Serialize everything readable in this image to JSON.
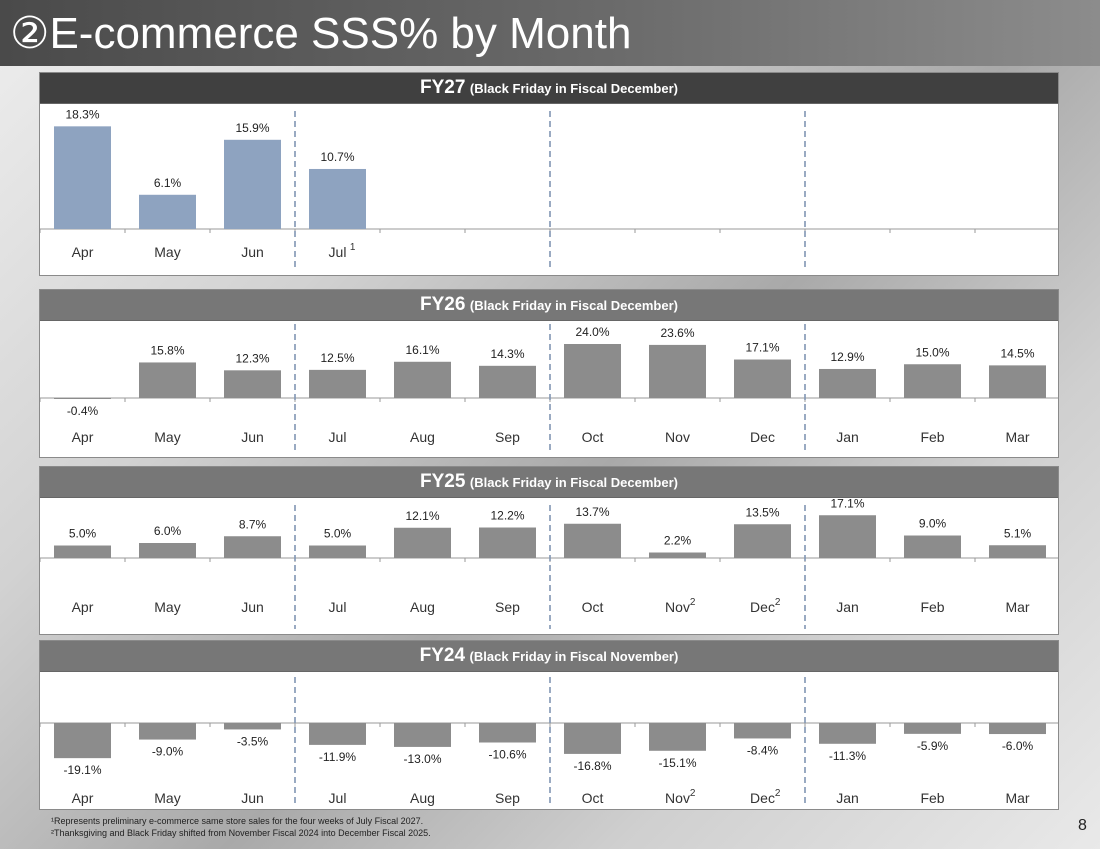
{
  "title": "②E-commerce SSS% by Month",
  "page_number": "8",
  "footnotes": [
    "¹Represents preliminary e-commerce same store sales for the four weeks of July Fiscal 2027.",
    "²Thanksgiving and Black Friday shifted from November Fiscal 2024 into December Fiscal 2025."
  ],
  "colors": {
    "fy27_bar": "#8ea3c0",
    "bar": "#8c8c8c",
    "divider": "#8095b3"
  },
  "chart_data": [
    {
      "type": "bar",
      "title": "FY27",
      "subtitle": "(Black Friday in Fiscal December)",
      "categories": [
        "Apr",
        "May",
        "Jun",
        "Jul",
        "",
        "",
        "",
        "",
        "",
        "",
        "",
        ""
      ],
      "category_superscripts": [
        "",
        "",
        "",
        "1",
        "",
        "",
        "",
        "",
        "",
        "",
        "",
        ""
      ],
      "values": [
        18.3,
        6.1,
        15.9,
        10.7,
        null,
        null,
        null,
        null,
        null,
        null,
        null,
        null
      ],
      "value_labels": [
        "18.3%",
        "6.1%",
        "15.9%",
        "10.7%",
        "",
        "",
        "",
        "",
        "",
        "",
        "",
        ""
      ],
      "ylim": [
        0,
        20
      ],
      "grid": false,
      "quarter_dividers": true
    },
    {
      "type": "bar",
      "title": "FY26",
      "subtitle": "(Black Friday in Fiscal December)",
      "categories": [
        "Apr",
        "May",
        "Jun",
        "Jul",
        "Aug",
        "Sep",
        "Oct",
        "Nov",
        "Dec",
        "Jan",
        "Feb",
        "Mar"
      ],
      "category_superscripts": [
        "",
        "",
        "",
        "",
        "",
        "",
        "",
        "",
        "",
        "",
        "",
        ""
      ],
      "values": [
        -0.4,
        15.8,
        12.3,
        12.5,
        16.1,
        14.3,
        24.0,
        23.6,
        17.1,
        12.9,
        15.0,
        14.5
      ],
      "value_labels": [
        "-0.4%",
        "15.8%",
        "12.3%",
        "12.5%",
        "16.1%",
        "14.3%",
        "24.0%",
        "23.6%",
        "17.1%",
        "12.9%",
        "15.0%",
        "14.5%"
      ],
      "ylim": [
        -1,
        26
      ],
      "grid": false,
      "quarter_dividers": true
    },
    {
      "type": "bar",
      "title": "FY25",
      "subtitle": "(Black Friday in Fiscal December)",
      "categories": [
        "Apr",
        "May",
        "Jun",
        "Jul",
        "Aug",
        "Sep",
        "Oct",
        "Nov",
        "Dec",
        "Jan",
        "Feb",
        "Mar"
      ],
      "category_superscripts": [
        "",
        "",
        "",
        "",
        "",
        "",
        "",
        "2",
        "2",
        "",
        "",
        ""
      ],
      "values": [
        5.0,
        6.0,
        8.7,
        5.0,
        12.1,
        12.2,
        13.7,
        2.2,
        13.5,
        17.1,
        9.0,
        5.1
      ],
      "value_labels": [
        "5.0%",
        "6.0%",
        "8.7%",
        "5.0%",
        "12.1%",
        "12.2%",
        "13.7%",
        "2.2%",
        "13.5%",
        "17.1%",
        "9.0%",
        "5.1%"
      ],
      "ylim": [
        0,
        20
      ],
      "grid": false,
      "quarter_dividers": true
    },
    {
      "type": "bar",
      "title": "FY24",
      "subtitle": "(Black Friday in Fiscal November)",
      "categories": [
        "Apr",
        "May",
        "Jun",
        "Jul",
        "Aug",
        "Sep",
        "Oct",
        "Nov",
        "Dec",
        "Jan",
        "Feb",
        "Mar"
      ],
      "category_superscripts": [
        "",
        "",
        "",
        "",
        "",
        "",
        "",
        "2",
        "2",
        "",
        "",
        ""
      ],
      "values": [
        -19.1,
        -9.0,
        -3.5,
        -11.9,
        -13.0,
        -10.6,
        -16.8,
        -15.1,
        -8.4,
        -11.3,
        -5.9,
        -6.0
      ],
      "value_labels": [
        "-19.1%",
        "-9.0%",
        "-3.5%",
        "-11.9%",
        "-13.0%",
        "-10.6%",
        "-16.8%",
        "-15.1%",
        "-8.4%",
        "-11.3%",
        "-5.9%",
        "-6.0%"
      ],
      "ylim": [
        -20,
        0
      ],
      "grid": false,
      "quarter_dividers": true
    }
  ]
}
